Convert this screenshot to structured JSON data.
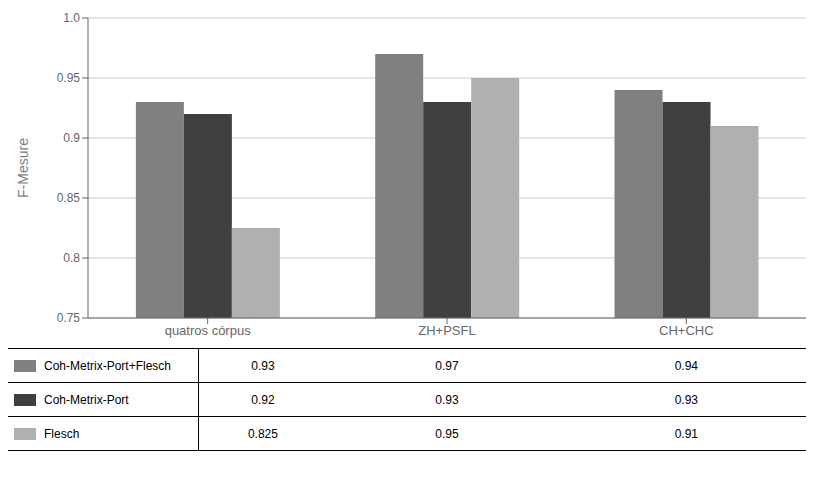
{
  "chart_data": {
    "type": "bar",
    "categories": [
      "quatros córpus",
      "ZH+PSFL",
      "CH+CHC"
    ],
    "series": [
      {
        "name": "Coh-Metrix-Port+Flesch",
        "color": "#808080",
        "values": [
          0.93,
          0.97,
          0.94
        ]
      },
      {
        "name": "Coh-Metrix-Port",
        "color": "#404040",
        "values": [
          0.92,
          0.93,
          0.93
        ]
      },
      {
        "name": "Flesch",
        "color": "#b0b0b0",
        "values": [
          0.825,
          0.95,
          0.91
        ]
      }
    ],
    "ylabel": "F-Mesure",
    "ylim": [
      0.75,
      1.0
    ],
    "yticks": [
      0.75,
      0.8,
      0.85,
      0.9,
      0.95,
      {
        "value": 1.0,
        "label": "1.0"
      }
    ],
    "grid": true,
    "legend": "bottom"
  }
}
